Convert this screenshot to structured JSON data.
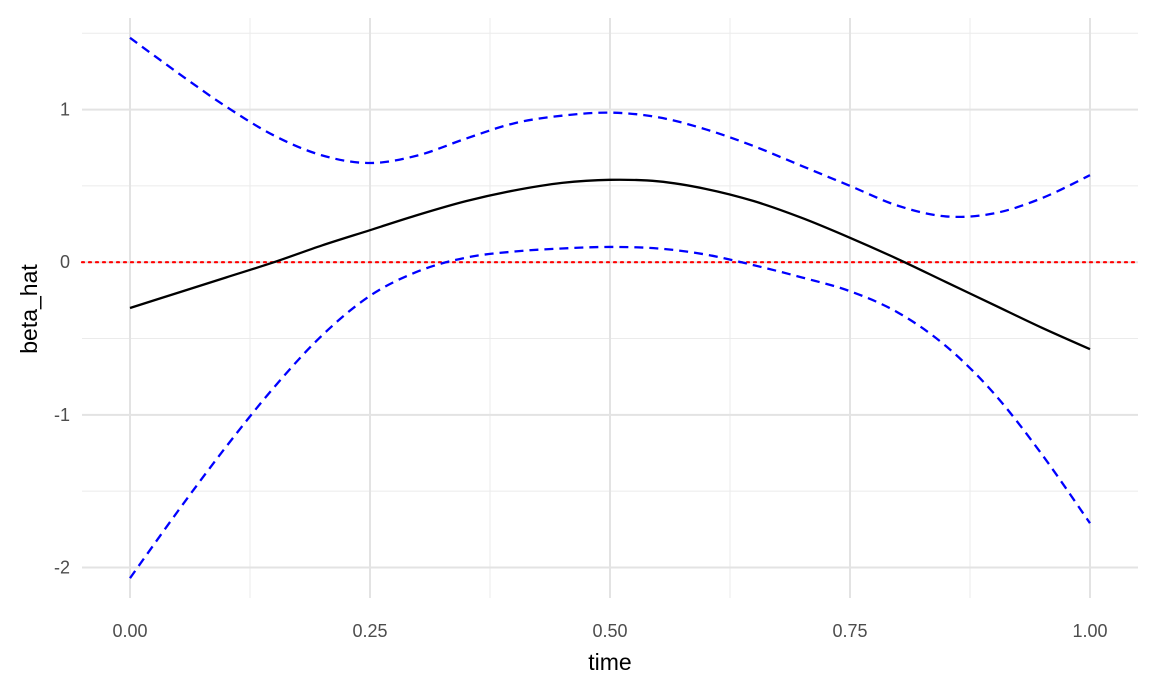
{
  "chart_data": {
    "type": "line",
    "title": "",
    "xlabel": "time",
    "ylabel": "beta_hat",
    "xlim": [
      -0.05,
      1.05
    ],
    "ylim": [
      -2.2,
      1.6
    ],
    "x_ticks": [
      0,
      0.25,
      0.5,
      0.75,
      1
    ],
    "x_tick_labels": [
      "0.00",
      "0.25",
      "0.50",
      "0.75",
      "1.00"
    ],
    "y_ticks": [
      -2,
      -1,
      0,
      1
    ],
    "y_tick_labels": [
      "-2",
      "-1",
      "0",
      "1"
    ],
    "grid": true,
    "legend": "none",
    "reference_line": {
      "y": 0,
      "color": "#ff0000",
      "style": "dotted"
    },
    "x": [
      0,
      0.05,
      0.1,
      0.15,
      0.2,
      0.25,
      0.3,
      0.35,
      0.4,
      0.45,
      0.5,
      0.55,
      0.6,
      0.65,
      0.7,
      0.75,
      0.8,
      0.85,
      0.9,
      0.95,
      1
    ],
    "series": [
      {
        "color": "#000000",
        "style": "solid",
        "values": [
          -0.3,
          -0.2,
          -0.1,
          0.0,
          0.11,
          0.21,
          0.31,
          0.4,
          0.47,
          0.52,
          0.54,
          0.53,
          0.48,
          0.4,
          0.29,
          0.16,
          0.02,
          -0.13,
          -0.28,
          -0.43,
          -0.57
        ]
      },
      {
        "color": "#0000ff",
        "style": "dashed",
        "values": [
          1.47,
          1.24,
          1.02,
          0.83,
          0.7,
          0.65,
          0.7,
          0.81,
          0.91,
          0.96,
          0.98,
          0.95,
          0.87,
          0.76,
          0.63,
          0.5,
          0.37,
          0.3,
          0.32,
          0.42,
          0.57
        ]
      },
      {
        "color": "#0000ff",
        "style": "dashed",
        "values": [
          -2.07,
          -1.63,
          -1.21,
          -0.82,
          -0.48,
          -0.22,
          -0.06,
          0.03,
          0.07,
          0.09,
          0.1,
          0.09,
          0.05,
          -0.02,
          -0.1,
          -0.19,
          -0.33,
          -0.55,
          -0.86,
          -1.26,
          -1.71
        ]
      }
    ]
  }
}
